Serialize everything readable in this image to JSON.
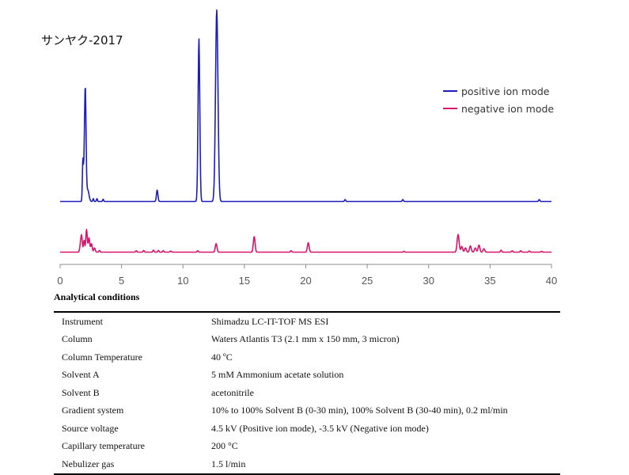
{
  "colors": {
    "positive": "#1d1dbd",
    "negative": "#d8146b",
    "axis": "#8c8c8c"
  },
  "sample_title": "サンヤク-2017",
  "section_title": "Analytical conditions",
  "chart_data": {
    "type": "line",
    "title": "",
    "xlabel": "",
    "ylabel": "",
    "xlim": [
      0,
      40
    ],
    "x_ticks": [
      "0",
      "5",
      "10",
      "15",
      "20",
      "25",
      "30",
      "35",
      "40"
    ],
    "grid": false,
    "legend_position": "top-right",
    "series": [
      {
        "name": "positive ion mode",
        "color": "#1d1dbd",
        "peaks": [
          {
            "x": 1.85,
            "y": 0.21,
            "w": 0.04
          },
          {
            "x": 1.95,
            "y": 0.12,
            "w": 0.05
          },
          {
            "x": 2.05,
            "y": 0.58,
            "w": 0.06
          },
          {
            "x": 2.25,
            "y": 0.06,
            "w": 0.1
          },
          {
            "x": 2.7,
            "y": 0.015,
            "w": 0.04
          },
          {
            "x": 3.0,
            "y": 0.015,
            "w": 0.04
          },
          {
            "x": 3.5,
            "y": 0.012,
            "w": 0.04
          },
          {
            "x": 7.9,
            "y": 0.06,
            "w": 0.06
          },
          {
            "x": 11.3,
            "y": 0.85,
            "w": 0.07
          },
          {
            "x": 12.75,
            "y": 1.0,
            "w": 0.1
          },
          {
            "x": 23.2,
            "y": 0.01,
            "w": 0.05
          },
          {
            "x": 27.9,
            "y": 0.01,
            "w": 0.05
          },
          {
            "x": 39.0,
            "y": 0.01,
            "w": 0.05
          }
        ]
      },
      {
        "name": "negative ion mode",
        "color": "#d8146b",
        "peaks": [
          {
            "x": 1.65,
            "y": 0.22,
            "w": 0.06
          },
          {
            "x": 1.75,
            "y": 0.55,
            "w": 0.06
          },
          {
            "x": 1.95,
            "y": 0.42,
            "w": 0.05
          },
          {
            "x": 2.15,
            "y": 0.8,
            "w": 0.06
          },
          {
            "x": 2.35,
            "y": 0.5,
            "w": 0.06
          },
          {
            "x": 2.55,
            "y": 0.3,
            "w": 0.06
          },
          {
            "x": 2.8,
            "y": 0.15,
            "w": 0.06
          },
          {
            "x": 3.2,
            "y": 0.06,
            "w": 0.05
          },
          {
            "x": 6.2,
            "y": 0.05,
            "w": 0.05
          },
          {
            "x": 6.8,
            "y": 0.06,
            "w": 0.05
          },
          {
            "x": 7.6,
            "y": 0.07,
            "w": 0.05
          },
          {
            "x": 8.0,
            "y": 0.06,
            "w": 0.05
          },
          {
            "x": 8.4,
            "y": 0.05,
            "w": 0.05
          },
          {
            "x": 9.0,
            "y": 0.04,
            "w": 0.05
          },
          {
            "x": 11.2,
            "y": 0.05,
            "w": 0.05
          },
          {
            "x": 12.7,
            "y": 0.3,
            "w": 0.07
          },
          {
            "x": 15.8,
            "y": 0.55,
            "w": 0.07
          },
          {
            "x": 18.8,
            "y": 0.05,
            "w": 0.05
          },
          {
            "x": 20.2,
            "y": 0.33,
            "w": 0.07
          },
          {
            "x": 28.0,
            "y": 0.03,
            "w": 0.05
          },
          {
            "x": 32.4,
            "y": 0.62,
            "w": 0.08
          },
          {
            "x": 32.7,
            "y": 0.2,
            "w": 0.07
          },
          {
            "x": 33.0,
            "y": 0.15,
            "w": 0.07
          },
          {
            "x": 33.4,
            "y": 0.22,
            "w": 0.07
          },
          {
            "x": 33.8,
            "y": 0.15,
            "w": 0.07
          },
          {
            "x": 34.1,
            "y": 0.25,
            "w": 0.07
          },
          {
            "x": 34.5,
            "y": 0.12,
            "w": 0.07
          },
          {
            "x": 35.9,
            "y": 0.07,
            "w": 0.05
          },
          {
            "x": 36.8,
            "y": 0.05,
            "w": 0.05
          },
          {
            "x": 37.5,
            "y": 0.05,
            "w": 0.05
          },
          {
            "x": 38.2,
            "y": 0.04,
            "w": 0.05
          },
          {
            "x": 39.2,
            "y": 0.03,
            "w": 0.05
          }
        ]
      }
    ]
  },
  "conditions": [
    {
      "label": "Instrument",
      "value": "Shimadzu LC-IT-TOF MS ESI"
    },
    {
      "label": "Column",
      "value": "Waters Atlantis T3 (2.1 mm x 150 mm, 3 micron)"
    },
    {
      "label": "Column Temperature",
      "value": "40 ºC"
    },
    {
      "label": "Solvent A",
      "value": "5 mM Ammonium acetate solution"
    },
    {
      "label": "Solvent B",
      "value": "acetonitrile"
    },
    {
      "label": "Gradient system",
      "value": "10% to 100% Solvent B (0-30 min), 100% Solvent B (30-40 min), 0.2 ml/min"
    },
    {
      "label": "Source voltage",
      "value": "4.5 kV (Positive ion mode), -3.5 kV (Negative ion mode)"
    },
    {
      "label": "Capillary temperature",
      "value": "200 °C"
    },
    {
      "label": "Nebulizer gas",
      "value": "1.5 l/min"
    }
  ]
}
